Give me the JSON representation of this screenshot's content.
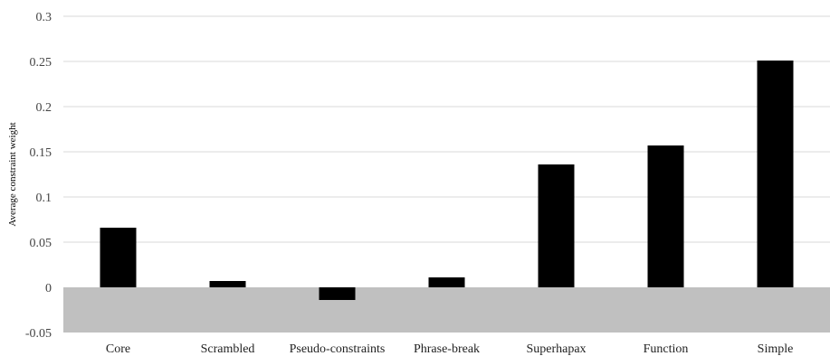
{
  "chart_data": {
    "type": "bar",
    "title": "",
    "xlabel": "",
    "ylabel": "Average constraint weight",
    "categories": [
      "Core",
      "Scrambled",
      "Pseudo-constraints",
      "Phrase-break",
      "Superhapax",
      "Function",
      "Simple"
    ],
    "values": [
      0.066,
      0.007,
      -0.014,
      0.011,
      0.136,
      0.157,
      0.251
    ],
    "ylim": [
      -0.05,
      0.3
    ],
    "yticks": [
      0.3,
      0.25,
      0.2,
      0.15,
      0.1,
      0.05,
      0,
      -0.05
    ],
    "ytick_labels": [
      "0.3",
      "0.25",
      "0.2",
      "0.15",
      "0.1",
      "0.05",
      "0",
      "-0.05"
    ],
    "grid": true,
    "negative_region_shaded": true,
    "colors": {
      "bar": "#000000",
      "negative_region": "#c0c0c0",
      "grid": "#d9d9d9"
    }
  }
}
